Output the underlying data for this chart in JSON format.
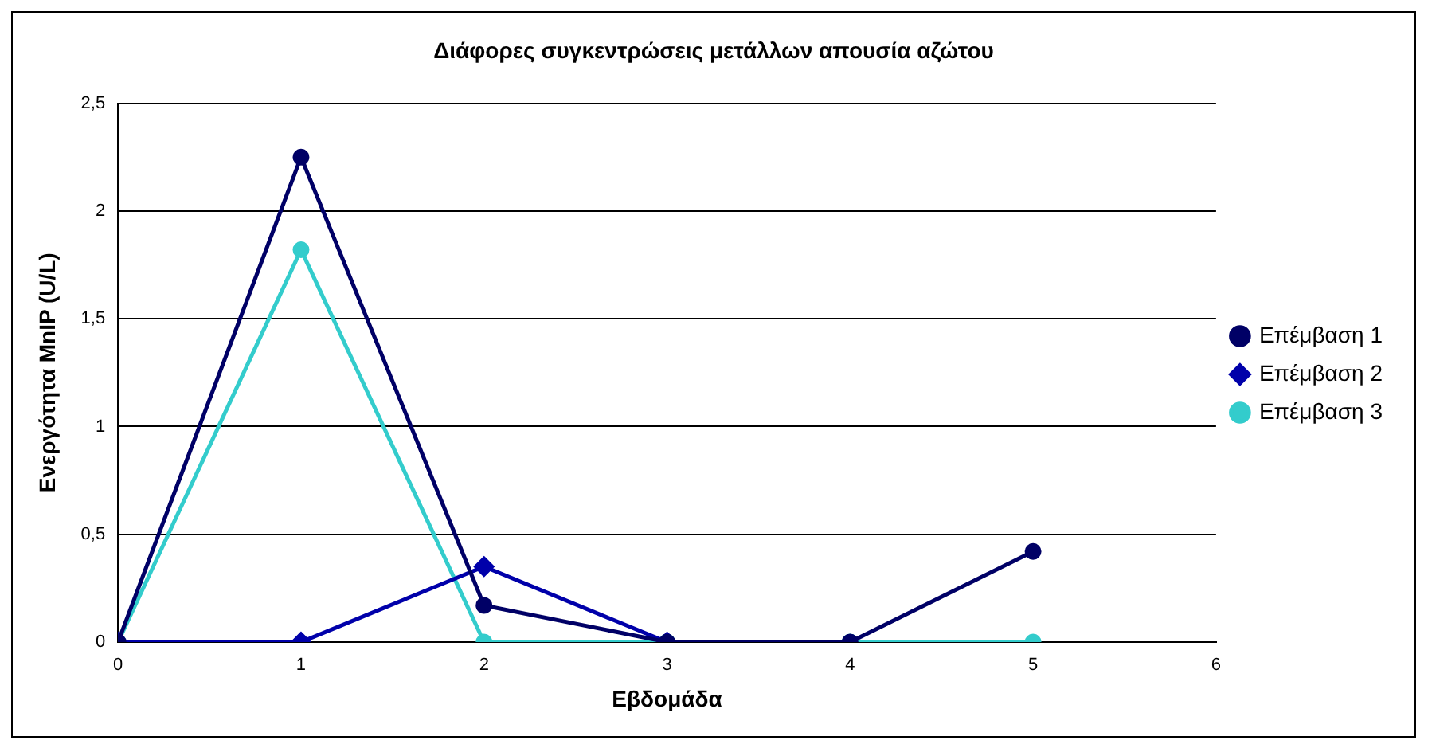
{
  "chart_data": {
    "type": "line",
    "title": "Διάφορες συγκεντρώσεις μετάλλων απουσία αζώτου",
    "xlabel": "Εβδομάδα",
    "ylabel": "Ενεργότητα MnIP (U/L)",
    "x": [
      0,
      1,
      2,
      3,
      4,
      5
    ],
    "series": [
      {
        "name": "Επέμβαση 1",
        "color": "#000066",
        "marker": "circle",
        "values": [
          0,
          2.25,
          0.17,
          0,
          0,
          0.42
        ]
      },
      {
        "name": "Επέμβαση 2",
        "color": "#0000aa",
        "marker": "diamond",
        "values": [
          0,
          0,
          0.35,
          0,
          null,
          null
        ]
      },
      {
        "name": "Επέμβαση 3",
        "color": "#33cccc",
        "marker": "circle",
        "values": [
          0,
          1.82,
          0,
          0,
          0,
          0
        ]
      }
    ],
    "xlim": [
      0,
      6
    ],
    "xticks": [
      0,
      1,
      2,
      3,
      4,
      5,
      6
    ],
    "ylim": [
      0,
      2.5
    ],
    "yticks": [
      0,
      {
        "value": 0.5,
        "label": "0,5"
      },
      1,
      {
        "value": 1.5,
        "label": "1,5"
      },
      2,
      {
        "value": 2.5,
        "label": "2,5"
      }
    ],
    "grid": "y",
    "legend": "right",
    "line_style": "solid"
  }
}
